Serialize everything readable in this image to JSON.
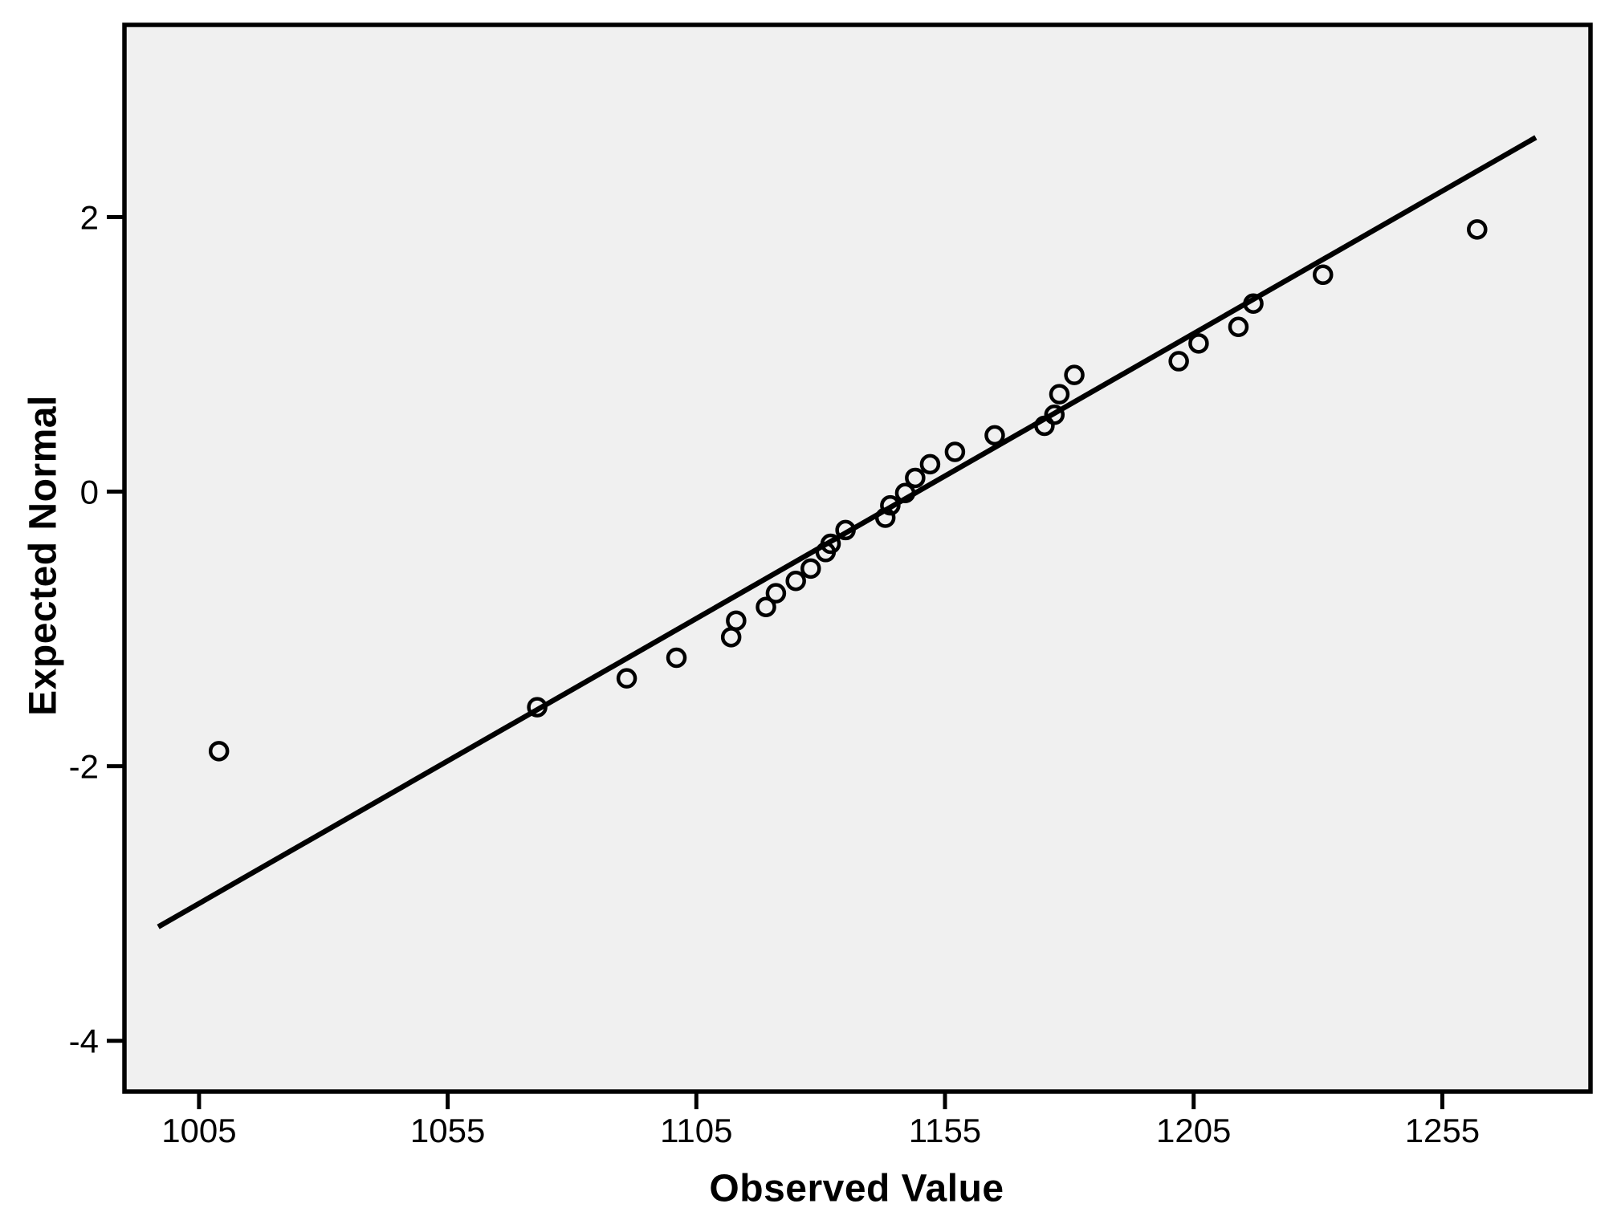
{
  "figure": {
    "kind": "normal-qq-plot"
  },
  "chart_data": {
    "type": "scatter",
    "title": "",
    "xlabel": "Observed Value",
    "ylabel": "Expected Normal",
    "x_ticks": [
      1005,
      1055,
      1105,
      1155,
      1205,
      1255
    ],
    "y_ticks": [
      2,
      0,
      -2,
      -4
    ],
    "xlim": [
      990,
      1284.8
    ],
    "ylim": [
      -4.37,
      3.4
    ],
    "grid": false,
    "legend_position": "none",
    "marker": {
      "shape": "open-circle",
      "color": "#000000"
    },
    "points": [
      [
        1009,
        -1.89
      ],
      [
        1073,
        -1.57
      ],
      [
        1091,
        -1.36
      ],
      [
        1101,
        -1.21
      ],
      [
        1112,
        -1.06
      ],
      [
        1113,
        -0.94
      ],
      [
        1119,
        -0.84
      ],
      [
        1121,
        -0.74
      ],
      [
        1125,
        -0.65
      ],
      [
        1128,
        -0.56
      ],
      [
        1131,
        -0.44
      ],
      [
        1132,
        -0.38
      ],
      [
        1135,
        -0.28
      ],
      [
        1143,
        -0.19
      ],
      [
        1144,
        -0.1
      ],
      [
        1147,
        -0.01
      ],
      [
        1149,
        0.1
      ],
      [
        1152,
        0.2
      ],
      [
        1157,
        0.29
      ],
      [
        1165,
        0.41
      ],
      [
        1175,
        0.48
      ],
      [
        1177,
        0.56
      ],
      [
        1178,
        0.71
      ],
      [
        1181,
        0.85
      ],
      [
        1202,
        0.95
      ],
      [
        1206,
        1.08
      ],
      [
        1214,
        1.2
      ],
      [
        1217,
        1.37
      ],
      [
        1231,
        1.58
      ],
      [
        1262,
        1.91
      ]
    ],
    "reference_line": {
      "x": [
        996.8,
        1273.8
      ],
      "y": [
        -3.17,
        2.58
      ],
      "color": "#000000"
    }
  },
  "style": {
    "page_bg": "#ffffff",
    "plot_bg": "#f0f0f0",
    "axis_color": "#000000",
    "text_color": "#000000"
  }
}
